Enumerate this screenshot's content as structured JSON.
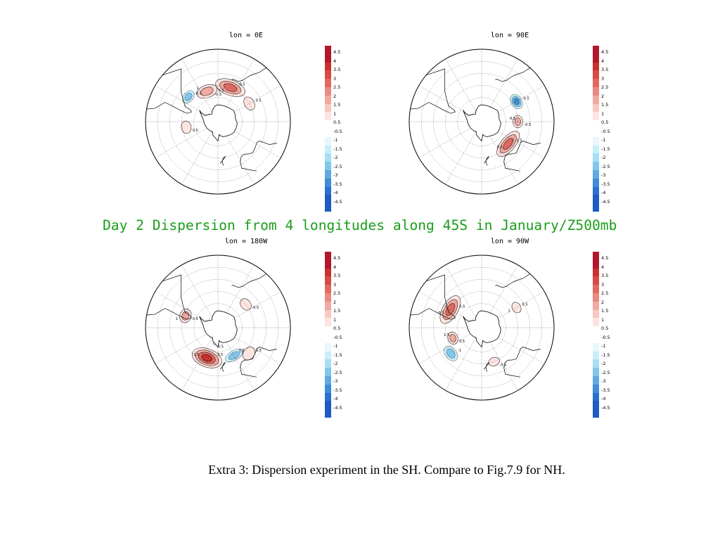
{
  "headline": "Day 2 Dispersion from 4 longitudes along 45S in January/Z500mb",
  "caption": "Extra 3: Dispersion experiment in the SH. Compare to Fig.7.9 for NH.",
  "colorbar": {
    "positive_colors": [
      "#b2182b",
      "#c8312f",
      "#d64b45",
      "#e06a60",
      "#ea8a80",
      "#f2a9a0",
      "#f8c8c1",
      "#fde4e0"
    ],
    "negative_colors": [
      "#e8f8fc",
      "#c8eef8",
      "#a6def2",
      "#82c6ec",
      "#5fa9e3",
      "#3f8cd8",
      "#2a70cc",
      "#1f5bc2"
    ],
    "labels_pos": [
      "4.5",
      "4",
      "3.5",
      "3",
      "2.5",
      "2",
      "1.5",
      "1",
      "0.5"
    ],
    "labels_neg": [
      "-0.5",
      "-1",
      "-1.5",
      "-2",
      "-2.5",
      "-3",
      "-3.5",
      "-4",
      "-4.5"
    ]
  },
  "panels": [
    {
      "title": "lon = 0E",
      "contour_labels": [
        "0.5",
        "-0.5",
        "0.5",
        "0.5",
        "-0.5",
        "0.5",
        "1"
      ],
      "features": [
        {
          "sign": "pos",
          "lat": -45,
          "lon": 20,
          "a": 22,
          "b": 11,
          "level": 2
        },
        {
          "sign": "pos",
          "lat": -50,
          "lon": -20,
          "a": 15,
          "b": 9,
          "level": 1
        },
        {
          "sign": "pos",
          "lat": -45,
          "lon": 60,
          "a": 10,
          "b": 7,
          "level": 0
        },
        {
          "sign": "pos",
          "lat": -50,
          "lon": -100,
          "a": 9,
          "b": 7,
          "level": 0
        },
        {
          "sign": "neg",
          "lat": -42,
          "lon": -50,
          "a": 10,
          "b": 7,
          "level": 1
        }
      ]
    },
    {
      "title": "lon = 90E",
      "contour_labels": [
        "0.5",
        "-0.5",
        "0.5",
        "0.5",
        "-0.5"
      ],
      "features": [
        {
          "sign": "pos",
          "lat": -47,
          "lon": 130,
          "a": 22,
          "b": 10,
          "level": 2
        },
        {
          "sign": "pos",
          "lat": -45,
          "lon": 90,
          "a": 9,
          "b": 7,
          "level": 1
        },
        {
          "sign": "neg",
          "lat": -40,
          "lon": 60,
          "a": 11,
          "b": 8,
          "level": 2
        }
      ]
    },
    {
      "title": "lon = 180W",
      "contour_labels": [
        "0.5",
        "0.5",
        "0.5",
        "-0.5",
        "-1",
        "0.5",
        "1.5",
        "1",
        "0.5"
      ],
      "features": [
        {
          "sign": "pos",
          "lat": -50,
          "lon": -160,
          "a": 22,
          "b": 13,
          "level": 3
        },
        {
          "sign": "pos",
          "lat": -47,
          "lon": -70,
          "a": 10,
          "b": 8,
          "level": 1
        },
        {
          "sign": "pos",
          "lat": -40,
          "lon": 130,
          "a": 10,
          "b": 8,
          "level": 0
        },
        {
          "sign": "pos",
          "lat": -45,
          "lon": 50,
          "a": 9,
          "b": 7,
          "level": 0
        },
        {
          "sign": "neg",
          "lat": -50,
          "lon": 150,
          "a": 14,
          "b": 7,
          "level": 1
        },
        {
          "sign": "neg",
          "lat": -70,
          "lon": -170,
          "a": 3,
          "b": 2,
          "level": 0
        }
      ]
    },
    {
      "title": "lon = 90W",
      "contour_labels": [
        "0.5",
        "0.5",
        "0.5",
        "-0.5",
        "-1",
        "0.5",
        "1.5",
        "1"
      ],
      "features": [
        {
          "sign": "pos",
          "lat": -45,
          "lon": -60,
          "a": 22,
          "b": 11,
          "level": 2
        },
        {
          "sign": "pos",
          "lat": -52,
          "lon": -110,
          "a": 9,
          "b": 7,
          "level": 1
        },
        {
          "sign": "pos",
          "lat": -40,
          "lon": 60,
          "a": 8,
          "b": 6,
          "level": 0
        },
        {
          "sign": "pos",
          "lat": -45,
          "lon": 160,
          "a": 8,
          "b": 6,
          "level": 0
        },
        {
          "sign": "neg",
          "lat": -40,
          "lon": -130,
          "a": 12,
          "b": 8,
          "level": 1
        }
      ]
    }
  ]
}
